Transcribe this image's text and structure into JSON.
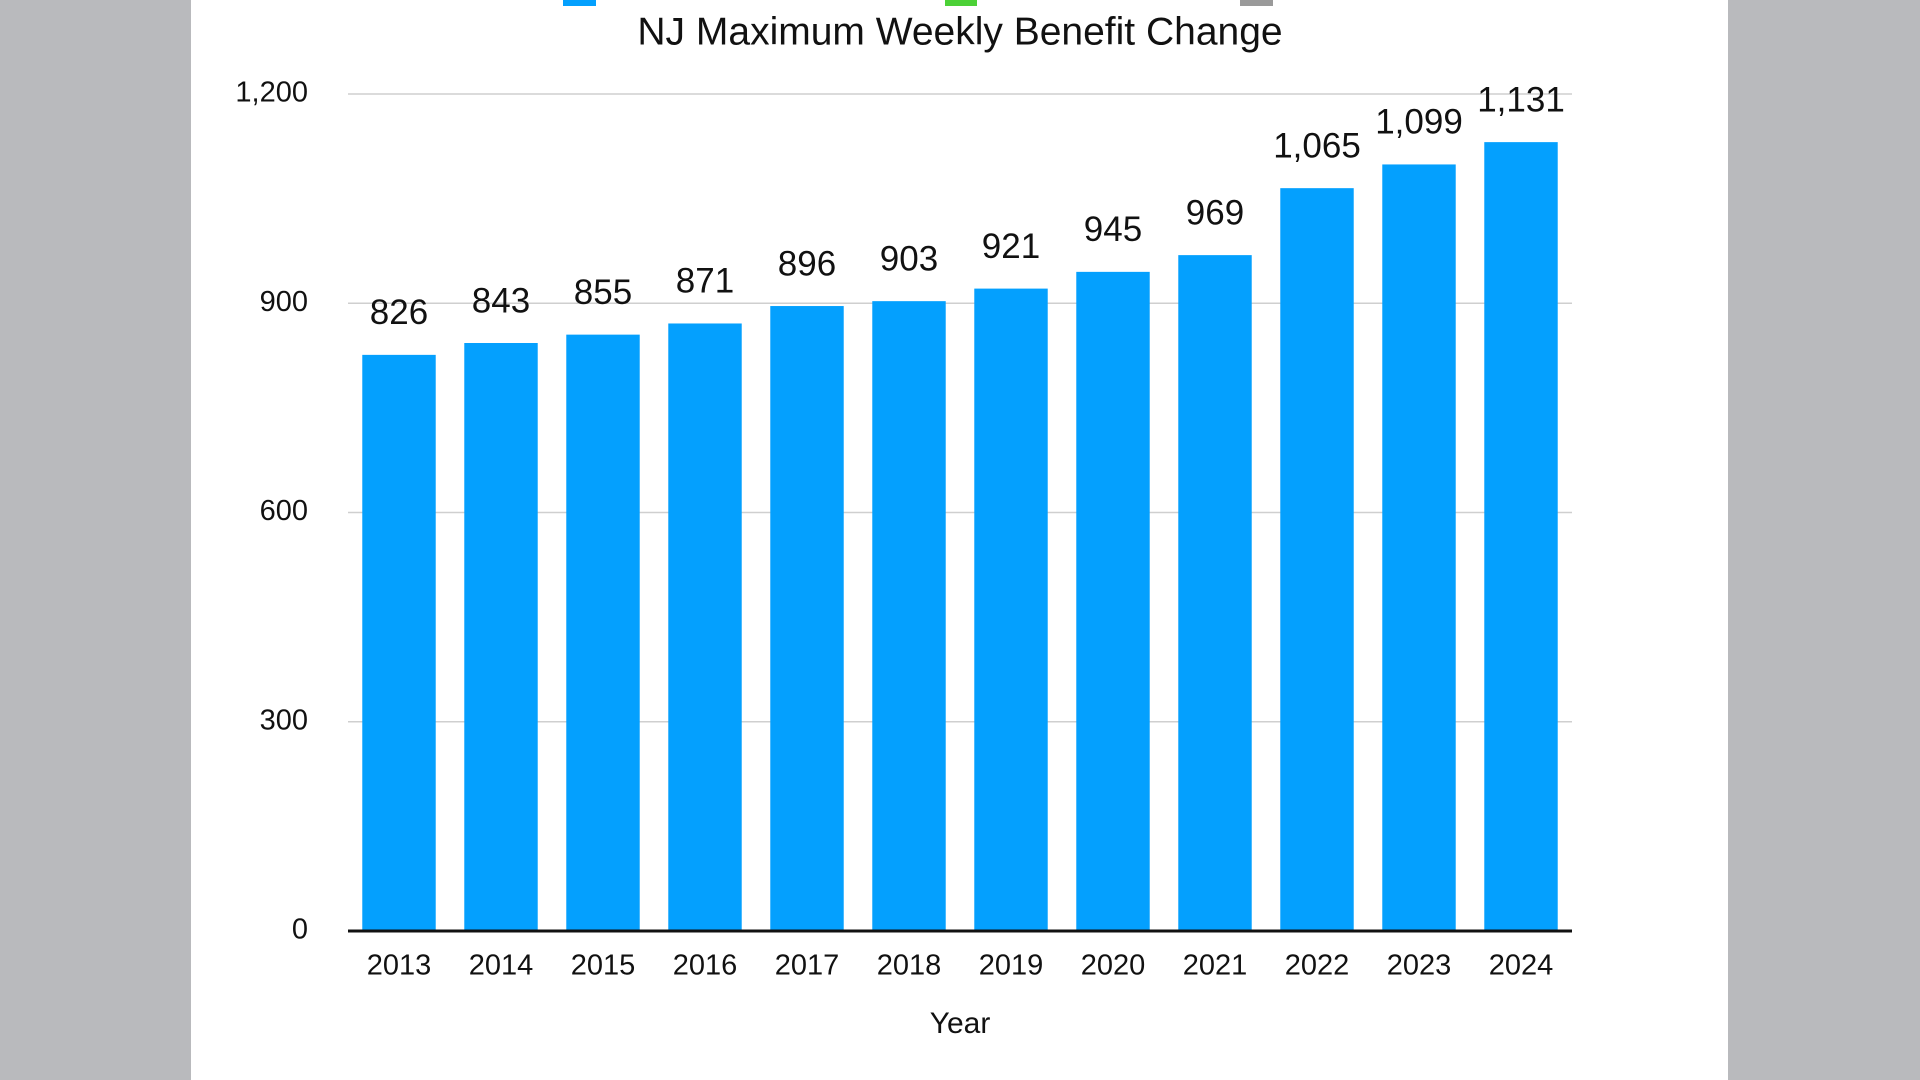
{
  "chart_data": {
    "type": "bar",
    "title": "NJ Maximum Weekly Benefit Change",
    "x_label": "Year",
    "categories": [
      "2013",
      "2014",
      "2015",
      "2016",
      "2017",
      "2018",
      "2019",
      "2020",
      "2021",
      "2022",
      "2023",
      "2024"
    ],
    "values": [
      826,
      843,
      855,
      871,
      896,
      903,
      921,
      945,
      969,
      1065,
      1099,
      1131
    ],
    "value_labels": [
      "826",
      "843",
      "855",
      "871",
      "896",
      "903",
      "921",
      "945",
      "969",
      "1,065",
      "1,099",
      "1,131"
    ],
    "color": "#04a0fe",
    "ylim": [
      0,
      1200
    ],
    "yticks": [
      0,
      300,
      600,
      900,
      {
        "value": 1200,
        "label": "1,200"
      }
    ],
    "grid": true
  }
}
